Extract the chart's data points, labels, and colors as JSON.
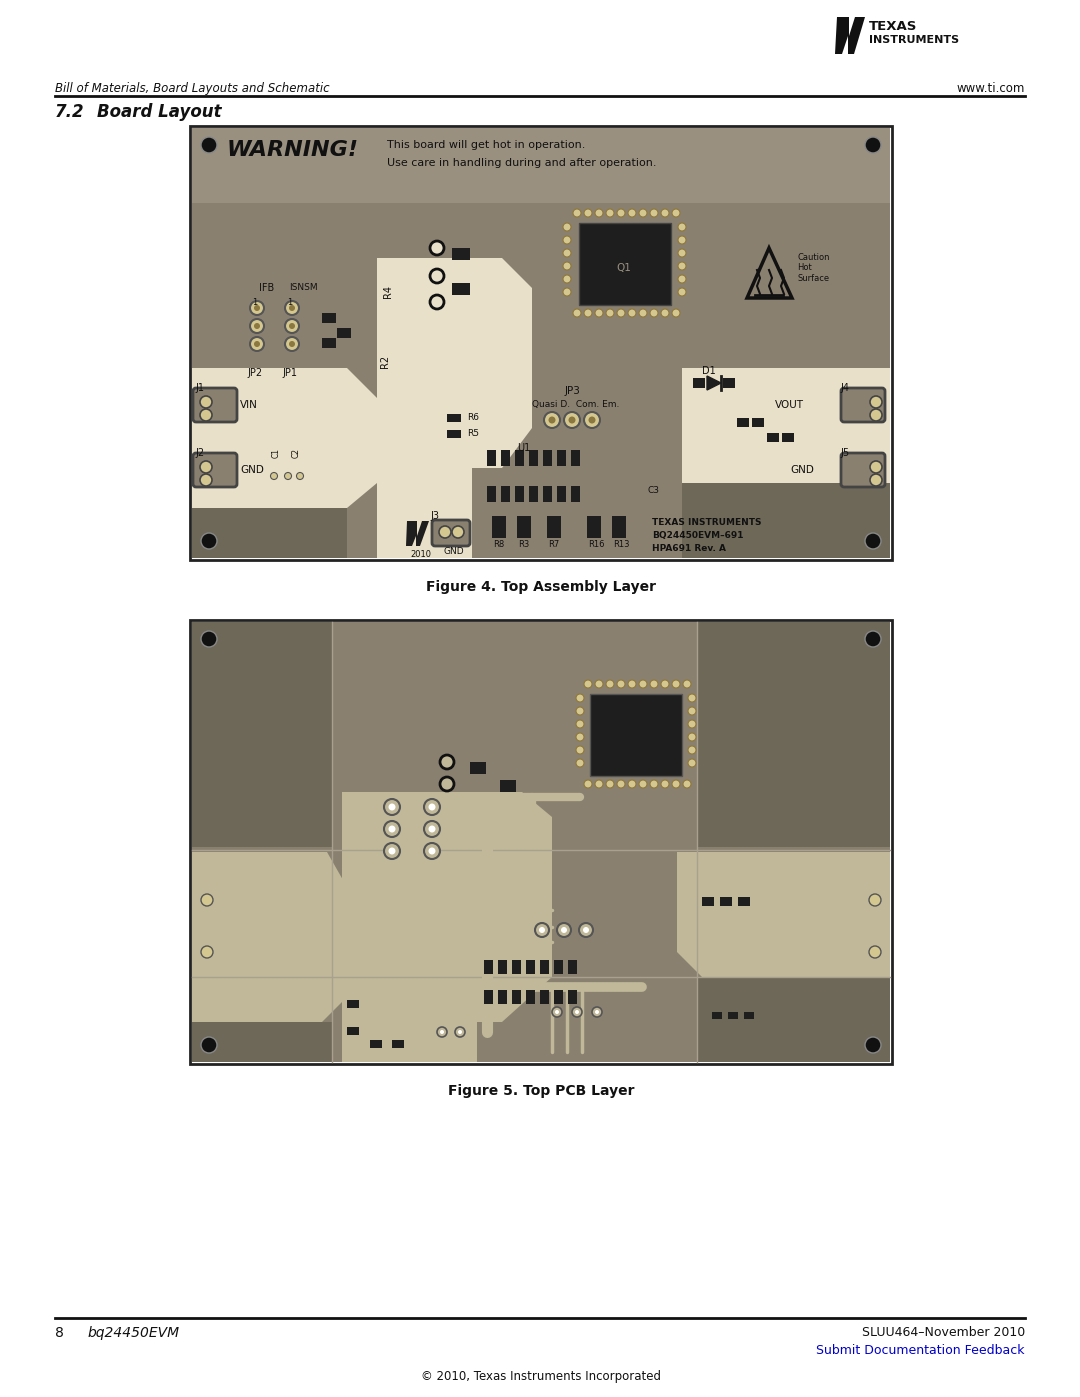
{
  "page_width": 10.8,
  "page_height": 13.97,
  "bg_color": "#ffffff",
  "header_left": "Bill of Materials, Board Layouts and Schematic",
  "header_right": "www.ti.com",
  "section_label": "7.2",
  "section_title": "Board Layout",
  "figure1_caption": "Figure 4. Top Assembly Layer",
  "figure2_caption": "Figure 5. Top PCB Layer",
  "footer_left_num": "8",
  "footer_left_text": "bq24450EVM",
  "footer_right_top": "SLUU464–November 2010",
  "footer_right_bottom": "Submit Documentation Feedback",
  "footer_center": "© 2010, Texas Instruments Incorporated",
  "board_bg": "#8a8070",
  "board_dark": "#6e6858",
  "board_light_zone": "#c0b898",
  "board_warn_bg": "#9a9080",
  "ic_body": "#1e1e1e",
  "ic_pad": "#d4c890",
  "connector_fill": "#d0c488",
  "black": "#111111",
  "white_trace": "#e8e0c8",
  "link_color": "#0000cc"
}
